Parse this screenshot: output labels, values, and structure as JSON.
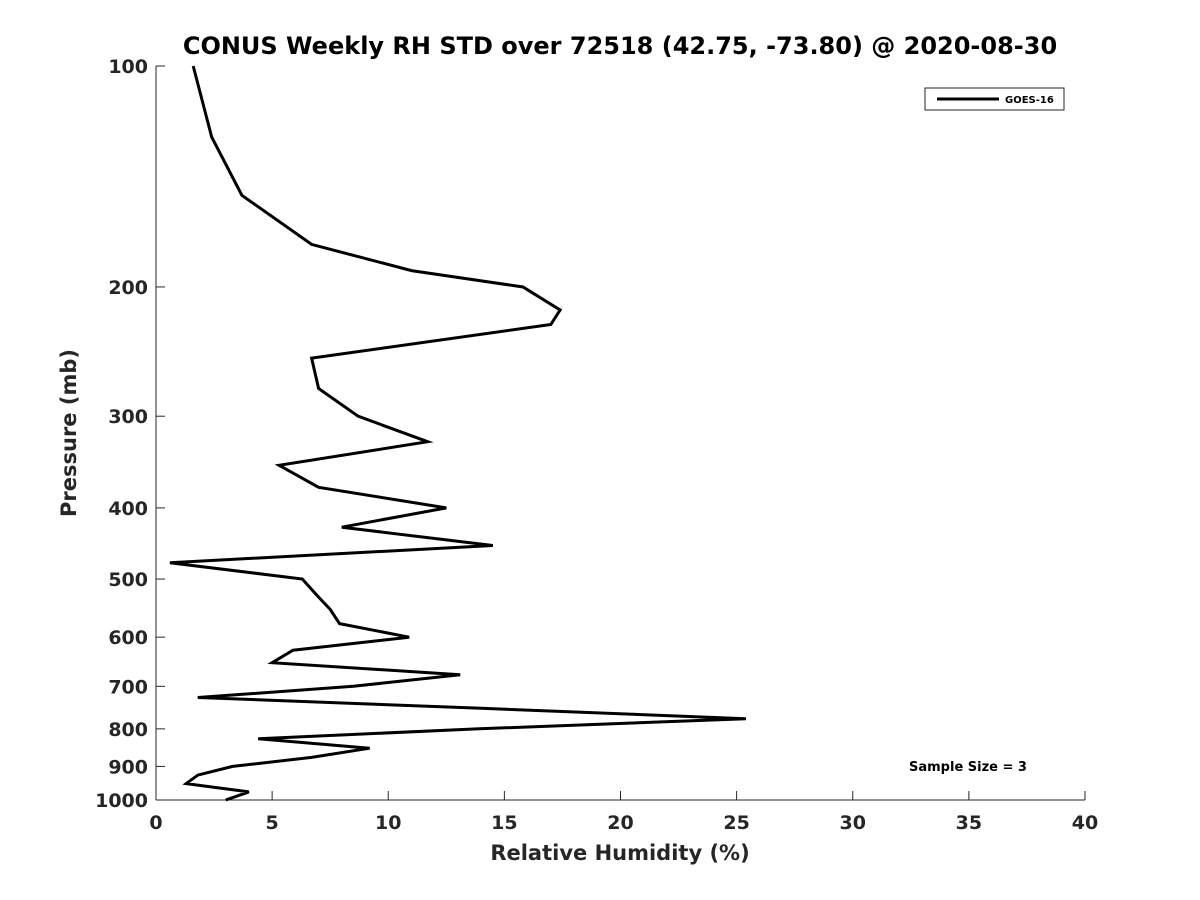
{
  "chart_data": {
    "type": "line",
    "title": "CONUS Weekly RH STD over 72518 (42.75, -73.80) @ 2020-08-30",
    "xlabel": "Relative Humidity (%)",
    "ylabel": "Pressure (mb)",
    "xlim": [
      0,
      40
    ],
    "ylim": [
      100,
      1000
    ],
    "yscale": "log",
    "yreversed": true,
    "grid": false,
    "legend_position": "top-right",
    "x_ticks": [
      0,
      5,
      10,
      15,
      20,
      25,
      30,
      35,
      40
    ],
    "y_ticks": [
      100,
      200,
      300,
      400,
      500,
      600,
      700,
      800,
      900,
      1000
    ],
    "series": [
      {
        "name": "GOES-16",
        "color": "#000000",
        "points": [
          {
            "p": 100,
            "rh": 1.6
          },
          {
            "p": 125,
            "rh": 2.4
          },
          {
            "p": 150,
            "rh": 3.7
          },
          {
            "p": 175,
            "rh": 6.7
          },
          {
            "p": 190,
            "rh": 11.0
          },
          {
            "p": 200,
            "rh": 15.8
          },
          {
            "p": 215,
            "rh": 17.4
          },
          {
            "p": 225,
            "rh": 17.0
          },
          {
            "p": 250,
            "rh": 6.7
          },
          {
            "p": 275,
            "rh": 7.0
          },
          {
            "p": 300,
            "rh": 8.7
          },
          {
            "p": 325,
            "rh": 11.7
          },
          {
            "p": 350,
            "rh": 5.3
          },
          {
            "p": 375,
            "rh": 7.0
          },
          {
            "p": 400,
            "rh": 12.5
          },
          {
            "p": 425,
            "rh": 8.0
          },
          {
            "p": 450,
            "rh": 14.5
          },
          {
            "p": 475,
            "rh": 0.6
          },
          {
            "p": 500,
            "rh": 6.3
          },
          {
            "p": 525,
            "rh": 6.9
          },
          {
            "p": 550,
            "rh": 7.5
          },
          {
            "p": 575,
            "rh": 7.9
          },
          {
            "p": 600,
            "rh": 10.9
          },
          {
            "p": 625,
            "rh": 5.9
          },
          {
            "p": 650,
            "rh": 5.0
          },
          {
            "p": 675,
            "rh": 13.1
          },
          {
            "p": 700,
            "rh": 8.5
          },
          {
            "p": 725,
            "rh": 1.8
          },
          {
            "p": 750,
            "rh": 14.0
          },
          {
            "p": 775,
            "rh": 25.4
          },
          {
            "p": 800,
            "rh": 13.8
          },
          {
            "p": 825,
            "rh": 4.4
          },
          {
            "p": 850,
            "rh": 9.2
          },
          {
            "p": 875,
            "rh": 6.7
          },
          {
            "p": 900,
            "rh": 3.3
          },
          {
            "p": 925,
            "rh": 1.8
          },
          {
            "p": 950,
            "rh": 1.3
          },
          {
            "p": 975,
            "rh": 4.0
          },
          {
            "p": 1000,
            "rh": 3.0
          }
        ]
      }
    ],
    "annotations": [
      "Sample Size = 3"
    ]
  }
}
